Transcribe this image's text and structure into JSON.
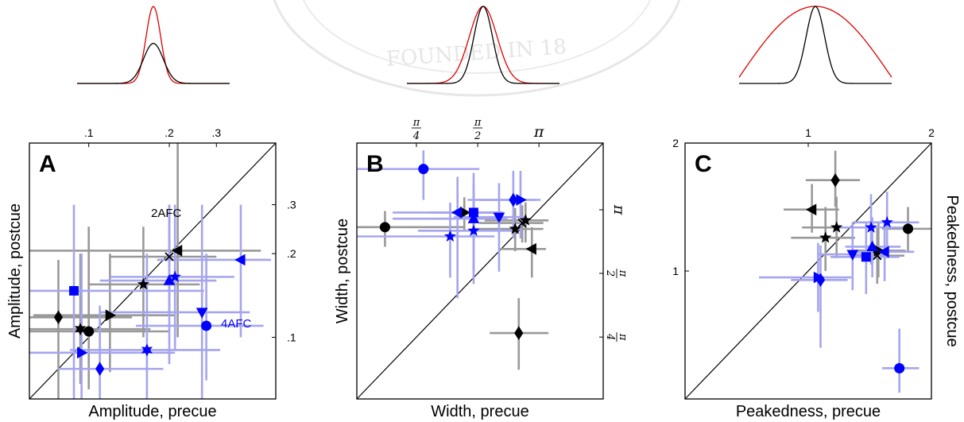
{
  "chart_data": [
    {
      "type": "scatter",
      "panel": "A",
      "xlabel": "Amplitude, precue",
      "ylabel": "Amplitude, postcue",
      "scale": "log",
      "xlim": [
        0.06,
        0.5
      ],
      "ylim": [
        0.06,
        0.5
      ],
      "top_ticks": [
        {
          "value": 0.1,
          "label": ".1"
        },
        {
          "value": 0.2,
          "label": ".2"
        },
        {
          "value": 0.3,
          "label": ".3"
        }
      ],
      "right_ticks": [
        {
          "value": 0.1,
          "label": ".1"
        },
        {
          "value": 0.2,
          "label": ".2"
        },
        {
          "value": 0.3,
          "label": ".3"
        }
      ],
      "annotations": [
        {
          "text": "2AFC",
          "color": "#000000"
        },
        {
          "text": "4AFC",
          "color": "#0000ff"
        }
      ],
      "inset": {
        "black_width": 0.3,
        "black_height": 0.52,
        "red_width": 0.22,
        "red_height": 1.0
      },
      "series": [
        {
          "group": "2AFC",
          "color": "#000000",
          "error_color": "#999999",
          "points": [
            {
              "x": 0.077,
              "y": 0.118,
              "marker": "diamond",
              "xerr": [
                0.055,
                0.145
              ],
              "yerr": [
                0.055,
                0.19
              ]
            },
            {
              "x": 0.1,
              "y": 0.105,
              "marker": "circle",
              "xerr": [
                0.06,
                0.2
              ],
              "yerr": [
                0.065,
                0.25
              ]
            },
            {
              "x": 0.093,
              "y": 0.107,
              "marker": "hexstar",
              "xerr": [
                0.06,
                0.17
              ],
              "yerr": [
                0.068,
                0.2
              ]
            },
            {
              "x": 0.12,
              "y": 0.12,
              "marker": "triangle-right",
              "xerr": [
                0.062,
                0.21
              ],
              "yerr": [
                0.075,
                0.2
              ]
            },
            {
              "x": 0.16,
              "y": 0.155,
              "marker": "star",
              "xerr": [
                0.1,
                0.26
              ],
              "yerr": [
                0.1,
                0.25
              ]
            },
            {
              "x": 0.215,
              "y": 0.205,
              "marker": "triangle-left",
              "xerr": [
                0.06,
                0.44
              ],
              "yerr": [
                0.1,
                0.5
              ]
            },
            {
              "x": 0.2,
              "y": 0.195,
              "marker": "x",
              "xerr": [
                0.12,
                0.3
              ],
              "yerr": [
                0.12,
                0.3
              ]
            }
          ]
        },
        {
          "group": "4AFC",
          "color": "#0000ff",
          "error_color": "#a5a5ee",
          "points": [
            {
              "x": 0.11,
              "y": 0.077,
              "marker": "diamond",
              "xerr": [
                0.077,
                0.19
              ],
              "yerr": [
                0.06,
                0.13
              ]
            },
            {
              "x": 0.094,
              "y": 0.088,
              "marker": "triangle-right",
              "xerr": [
                0.06,
                0.21
              ],
              "yerr": [
                0.06,
                0.2
              ]
            },
            {
              "x": 0.165,
              "y": 0.09,
              "marker": "hexstar",
              "xerr": [
                0.085,
                0.31
              ],
              "yerr": [
                0.06,
                0.2
              ]
            },
            {
              "x": 0.088,
              "y": 0.147,
              "marker": "square",
              "xerr": [
                0.06,
                0.27
              ],
              "yerr": [
                0.06,
                0.3
              ]
            },
            {
              "x": 0.2,
              "y": 0.16,
              "marker": "triangle-up",
              "xerr": [
                0.11,
                0.3
              ],
              "yerr": [
                0.08,
                0.3
              ]
            },
            {
              "x": 0.21,
              "y": 0.165,
              "marker": "star",
              "xerr": [
                0.12,
                0.35
              ],
              "yerr": [
                0.09,
                0.3
              ]
            },
            {
              "x": 0.265,
              "y": 0.123,
              "marker": "triangle-down",
              "xerr": [
                0.11,
                0.4
              ],
              "yerr": [
                0.06,
                0.3
              ]
            },
            {
              "x": 0.275,
              "y": 0.11,
              "marker": "circle",
              "xerr": [
                0.15,
                0.45
              ],
              "yerr": [
                0.07,
                0.2
              ]
            },
            {
              "x": 0.37,
              "y": 0.19,
              "marker": "triangle-left",
              "xerr": [
                0.18,
                0.48
              ],
              "yerr": [
                0.1,
                0.3
              ]
            }
          ]
        }
      ]
    },
    {
      "type": "scatter",
      "panel": "B",
      "xlabel": "Width, precue",
      "ylabel": "Width, postcue",
      "scale": "log",
      "xlim": [
        0.4,
        6.5
      ],
      "ylim": [
        0.4,
        6.5
      ],
      "top_ticks": [
        {
          "value": 0.785,
          "numerator": "π",
          "denominator": "4"
        },
        {
          "value": 1.571,
          "numerator": "π",
          "denominator": "2"
        },
        {
          "value": 3.142,
          "label": "π"
        }
      ],
      "right_ticks": [
        {
          "value": 0.785,
          "numerator": "π",
          "denominator": "4"
        },
        {
          "value": 1.571,
          "numerator": "π",
          "denominator": "2"
        },
        {
          "value": 3.142,
          "label": "π"
        }
      ],
      "inset": {
        "black_width": 0.28,
        "black_height": 1.0,
        "red_width": 0.42,
        "red_height": 1.0
      },
      "series": [
        {
          "group": "2AFC",
          "color": "#000000",
          "error_color": "#999999",
          "points": [
            {
              "x": 0.55,
              "y": 2.6,
              "marker": "circle",
              "xerr": [
                0.4,
                1.35
              ],
              "yerr": [
                2.1,
                3.1
              ]
            },
            {
              "x": 1.35,
              "y": 3.05,
              "marker": "triangle-right",
              "xerr": [
                0.95,
                2.0
              ],
              "yerr": [
                2.5,
                3.6
              ]
            },
            {
              "x": 2.4,
              "y": 2.55,
              "marker": "star",
              "xerr": [
                1.5,
                3.3
              ],
              "yerr": [
                2.0,
                3.2
              ]
            },
            {
              "x": 2.7,
              "y": 2.8,
              "marker": "star",
              "xerr": [
                1.7,
                3.5
              ],
              "yerr": [
                2.2,
                3.4
              ]
            },
            {
              "x": 2.6,
              "y": 2.72,
              "marker": "x",
              "xerr": [
                1.6,
                3.3
              ],
              "yerr": [
                2.2,
                3.3
              ]
            },
            {
              "x": 2.9,
              "y": 2.05,
              "marker": "triangle-left",
              "xerr": [
                2.0,
                3.4
              ],
              "yerr": [
                1.5,
                2.6
              ]
            },
            {
              "x": 2.5,
              "y": 0.82,
              "marker": "diamond",
              "xerr": [
                1.8,
                3.5
              ],
              "yerr": [
                0.55,
                1.2
              ]
            }
          ]
        },
        {
          "group": "4AFC",
          "color": "#0000ff",
          "error_color": "#a5a5ee",
          "points": [
            {
              "x": 0.85,
              "y": 4.9,
              "marker": "circle",
              "xerr": [
                0.4,
                1.6
              ],
              "yerr": [
                3.5,
                6.0
              ]
            },
            {
              "x": 1.25,
              "y": 3.05,
              "marker": "triangle-left",
              "xerr": [
                0.6,
                1.9
              ],
              "yerr": [
                1.2,
                4.5
              ]
            },
            {
              "x": 1.5,
              "y": 3.05,
              "marker": "square",
              "xerr": [
                0.9,
                2.1
              ],
              "yerr": [
                1.6,
                4.7
              ]
            },
            {
              "x": 1.5,
              "y": 2.85,
              "marker": "triangle-up",
              "xerr": [
                0.6,
                2.2
              ],
              "yerr": [
                1.6,
                4.2
              ]
            },
            {
              "x": 2.0,
              "y": 2.9,
              "marker": "triangle-down",
              "xerr": [
                1.2,
                2.7
              ],
              "yerr": [
                1.6,
                4.2
              ]
            },
            {
              "x": 1.5,
              "y": 2.5,
              "marker": "star",
              "xerr": [
                0.8,
                2.4
              ],
              "yerr": [
                1.4,
                3.8
              ]
            },
            {
              "x": 1.15,
              "y": 2.35,
              "marker": "star",
              "xerr": [
                0.4,
                1.9
              ],
              "yerr": [
                1.5,
                3.4
              ]
            },
            {
              "x": 2.35,
              "y": 3.5,
              "marker": "diamond",
              "xerr": [
                1.4,
                3.0
              ],
              "yerr": [
                2.3,
                4.8
              ]
            },
            {
              "x": 2.55,
              "y": 3.5,
              "marker": "triangle-right",
              "xerr": [
                1.6,
                3.2
              ],
              "yerr": [
                2.3,
                4.8
              ]
            }
          ]
        }
      ]
    },
    {
      "type": "scatter",
      "panel": "C",
      "xlabel": "Peakedness, precue",
      "ylabel": "Peakedness, postcue",
      "scale": "linear",
      "xlim": [
        0.0,
        2.0
      ],
      "ylim": [
        0.0,
        2.0
      ],
      "top_ticks": [
        {
          "value": 1,
          "label": "1"
        },
        {
          "value": 2,
          "label": "2"
        }
      ],
      "left_ticks": [
        {
          "value": 1,
          "label": "1"
        },
        {
          "value": 2,
          "label": "2"
        }
      ],
      "inset": {
        "black_width": 0.28,
        "black_height": 1.0,
        "red_width": 1.0,
        "red_height": 1.0
      },
      "series": [
        {
          "group": "2AFC",
          "color": "#000000",
          "error_color": "#999999",
          "points": [
            {
              "x": 1.22,
              "y": 1.71,
              "marker": "diamond",
              "xerr": [
                0.98,
                1.42
              ],
              "yerr": [
                1.5,
                1.94
              ]
            },
            {
              "x": 1.03,
              "y": 1.48,
              "marker": "triangle-left",
              "xerr": [
                0.8,
                1.25
              ],
              "yerr": [
                1.3,
                1.68
              ]
            },
            {
              "x": 1.14,
              "y": 1.26,
              "marker": "star",
              "xerr": [
                0.86,
                1.38
              ],
              "yerr": [
                1.0,
                1.5
              ]
            },
            {
              "x": 1.23,
              "y": 1.34,
              "marker": "star",
              "xerr": [
                0.95,
                1.45
              ],
              "yerr": [
                1.1,
                1.58
              ]
            },
            {
              "x": 1.57,
              "y": 1.16,
              "marker": "triangle-right",
              "xerr": [
                1.35,
                1.79
              ],
              "yerr": [
                0.95,
                1.38
              ]
            },
            {
              "x": 1.56,
              "y": 1.12,
              "marker": "x",
              "xerr": [
                1.35,
                1.78
              ],
              "yerr": [
                0.9,
                1.34
              ]
            },
            {
              "x": 1.81,
              "y": 1.33,
              "marker": "circle",
              "xerr": [
                1.6,
                2.0
              ],
              "yerr": [
                1.15,
                1.5
              ]
            }
          ]
        },
        {
          "group": "4AFC",
          "color": "#0000ff",
          "error_color": "#a5a5ee",
          "points": [
            {
              "x": 1.08,
              "y": 0.95,
              "marker": "triangle-right",
              "xerr": [
                0.6,
                1.35
              ],
              "yerr": [
                0.68,
                1.22
              ]
            },
            {
              "x": 1.1,
              "y": 0.93,
              "marker": "diamond",
              "xerr": [
                0.86,
                1.32
              ],
              "yerr": [
                0.4,
                1.2
              ]
            },
            {
              "x": 1.36,
              "y": 1.13,
              "marker": "triangle-down",
              "xerr": [
                1.08,
                1.62
              ],
              "yerr": [
                0.85,
                1.38
              ]
            },
            {
              "x": 1.47,
              "y": 1.11,
              "marker": "square",
              "xerr": [
                1.18,
                1.74
              ],
              "yerr": [
                0.82,
                1.38
              ]
            },
            {
              "x": 1.51,
              "y": 1.34,
              "marker": "star",
              "xerr": [
                1.25,
                1.78
              ],
              "yerr": [
                1.05,
                1.6
              ]
            },
            {
              "x": 1.64,
              "y": 1.38,
              "marker": "star",
              "xerr": [
                1.36,
                1.9
              ],
              "yerr": [
                1.1,
                1.62
              ]
            },
            {
              "x": 1.52,
              "y": 1.19,
              "marker": "triangle-up",
              "xerr": [
                1.3,
                1.75
              ],
              "yerr": [
                0.95,
                1.42
              ]
            },
            {
              "x": 1.62,
              "y": 1.15,
              "marker": "triangle-left",
              "xerr": [
                1.4,
                1.86
              ],
              "yerr": [
                0.92,
                1.4
              ]
            },
            {
              "x": 1.74,
              "y": 0.24,
              "marker": "circle",
              "xerr": [
                1.6,
                1.9
              ],
              "yerr": [
                0.05,
                0.55
              ]
            }
          ]
        }
      ]
    }
  ]
}
